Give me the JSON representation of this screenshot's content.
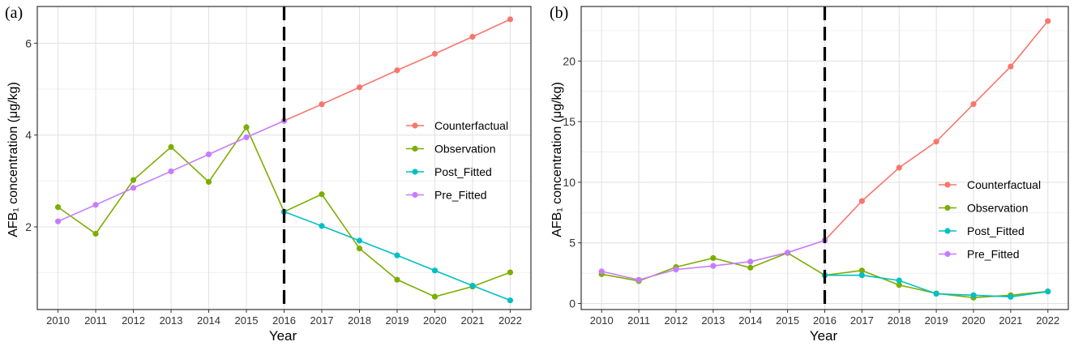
{
  "chart_data": [
    {
      "type": "line",
      "panel_label": "(a)",
      "xlabel": "Year",
      "ylabel": "AFB₁ concentration  (μg/kg)",
      "x": [
        2010,
        2011,
        2012,
        2013,
        2014,
        2015,
        2016,
        2017,
        2018,
        2019,
        2020,
        2021,
        2022
      ],
      "x_tick_labels": [
        "2010",
        "2011",
        "2012",
        "2013",
        "2014",
        "2015",
        "2016",
        "2017",
        "2018",
        "2019",
        "2020",
        "2021",
        "2022"
      ],
      "ylim": [
        0.2,
        6.8
      ],
      "y_ticks": [
        2,
        4,
        6
      ],
      "y_tick_labels": [
        "2",
        "4",
        "6"
      ],
      "intervention_x": 2016,
      "legend_position": "right",
      "series": [
        {
          "name": "Counterfactual",
          "color": "#F8766D",
          "x": [
            2016,
            2017,
            2018,
            2019,
            2020,
            2021,
            2022
          ],
          "values": [
            4.31,
            4.67,
            5.04,
            5.41,
            5.77,
            6.14,
            6.52
          ]
        },
        {
          "name": "Observation",
          "color": "#7CAE00",
          "x": [
            2010,
            2011,
            2012,
            2013,
            2014,
            2015,
            2016,
            2017,
            2018,
            2019,
            2020,
            2021,
            2022
          ],
          "values": [
            2.43,
            1.85,
            3.02,
            3.74,
            2.98,
            4.17,
            2.33,
            2.71,
            1.53,
            0.85,
            0.48,
            0.7,
            1.01
          ]
        },
        {
          "name": "Post_Fitted",
          "color": "#00BFC4",
          "x": [
            2016,
            2017,
            2018,
            2019,
            2020,
            2021,
            2022
          ],
          "values": [
            2.33,
            2.02,
            1.7,
            1.38,
            1.05,
            0.72,
            0.4
          ]
        },
        {
          "name": "Pre_Fitted",
          "color": "#C77CFF",
          "x": [
            2010,
            2011,
            2012,
            2013,
            2014,
            2015,
            2016
          ],
          "values": [
            2.12,
            2.48,
            2.85,
            3.21,
            3.58,
            3.95,
            4.31
          ]
        }
      ]
    },
    {
      "type": "line",
      "panel_label": "(b)",
      "xlabel": "Year",
      "ylabel": "AFB₁ concentration (μg/kg)",
      "x": [
        2010,
        2011,
        2012,
        2013,
        2014,
        2015,
        2016,
        2017,
        2018,
        2019,
        2020,
        2021,
        2022
      ],
      "x_tick_labels": [
        "2010",
        "2011",
        "2012",
        "2013",
        "2014",
        "2015",
        "2016",
        "2017",
        "2018",
        "2019",
        "2020",
        "2021",
        "2022"
      ],
      "ylim": [
        -0.5,
        24.5
      ],
      "y_ticks": [
        0,
        5,
        10,
        15,
        20
      ],
      "y_tick_labels": [
        "0",
        "5",
        "10",
        "15",
        "20"
      ],
      "intervention_x": 2016,
      "legend_position": "right",
      "series": [
        {
          "name": "Counterfactual",
          "color": "#F8766D",
          "x": [
            2016,
            2017,
            2018,
            2019,
            2020,
            2021,
            2022
          ],
          "values": [
            5.2,
            8.45,
            11.2,
            13.35,
            16.45,
            19.55,
            23.3
          ]
        },
        {
          "name": "Observation",
          "color": "#7CAE00",
          "x": [
            2010,
            2011,
            2012,
            2013,
            2014,
            2015,
            2016,
            2017,
            2018,
            2019,
            2020,
            2021,
            2022
          ],
          "values": [
            2.42,
            1.85,
            3.0,
            3.75,
            2.95,
            4.17,
            2.33,
            2.72,
            1.52,
            0.83,
            0.48,
            0.68,
            1.0
          ]
        },
        {
          "name": "Post_Fitted",
          "color": "#00BFC4",
          "x": [
            2016,
            2017,
            2018,
            2019,
            2020,
            2021,
            2022
          ],
          "values": [
            2.33,
            2.33,
            1.9,
            0.8,
            0.68,
            0.55,
            0.98
          ]
        },
        {
          "name": "Pre_Fitted",
          "color": "#C77CFF",
          "x": [
            2010,
            2011,
            2012,
            2013,
            2014,
            2015,
            2016
          ],
          "values": [
            2.65,
            1.95,
            2.8,
            3.1,
            3.45,
            4.2,
            5.2
          ]
        }
      ]
    }
  ]
}
